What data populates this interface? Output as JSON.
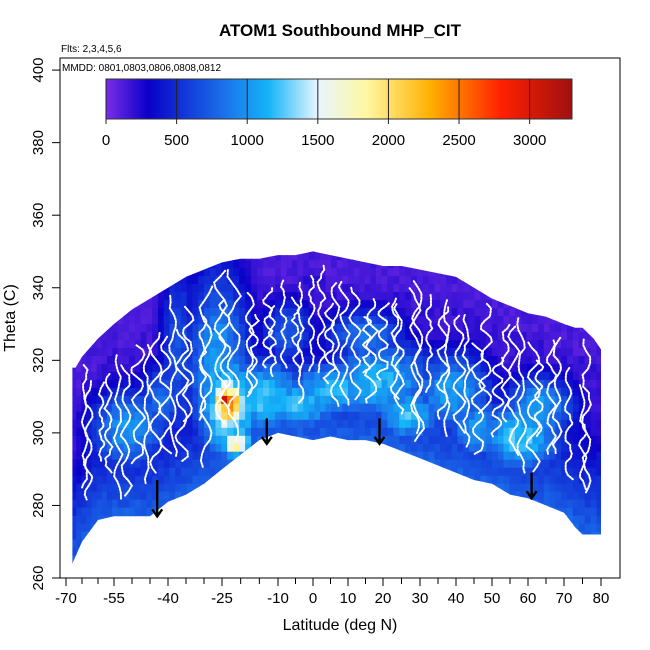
{
  "chart_data": {
    "type": "heatmap",
    "title": "ATOM1 Southbound MHP_CIT",
    "subtitle_flights": "Flts: 2,3,4,5,6",
    "subtitle_dates": "MMDD: 0801,0803,0806,0808,0812",
    "xlabel": "Latitude (deg N)",
    "ylabel": "Theta (C)",
    "xlim": [
      -72,
      83
    ],
    "ylim": [
      260,
      403
    ],
    "x_major_ticks": [
      -70,
      -55,
      -40,
      -25,
      -10,
      0,
      10,
      20,
      30,
      40,
      50,
      60,
      70,
      80
    ],
    "x_tick_labels": [
      "-70",
      "-55",
      "-40",
      "-25",
      "-10",
      "0",
      "10",
      "20",
      "30",
      "40",
      "50",
      "60",
      "70",
      "80"
    ],
    "x_minor_ticks": [
      -65,
      -60,
      -50,
      -45,
      -35,
      -30,
      -20,
      -15,
      -5,
      5,
      15,
      25,
      35,
      45,
      55,
      65,
      75
    ],
    "y_ticks": [
      260,
      280,
      300,
      320,
      340,
      360,
      380,
      400
    ],
    "y_tick_labels": [
      "260",
      "280",
      "300",
      "320",
      "340",
      "360",
      "380",
      "400"
    ],
    "colorbar": {
      "min": 0,
      "max": 3300,
      "ticks": [
        0,
        500,
        1000,
        1500,
        2000,
        2500,
        3000
      ],
      "tick_labels": [
        "0",
        "500",
        "1000",
        "1500",
        "2000",
        "2500",
        "3000"
      ],
      "colors": [
        "#7a2ee8",
        "#0a00c8",
        "#1a6ae8",
        "#14b4f8",
        "#e8f6ff",
        "#fff7a0",
        "#ffb000",
        "#ff2000",
        "#a01010"
      ],
      "stops": [
        0,
        300,
        800,
        1150,
        1500,
        1850,
        2300,
        2800,
        3300
      ]
    },
    "envelope": {
      "lat": [
        -68,
        -67,
        -65,
        -60,
        -55,
        -50,
        -45,
        -40,
        -35,
        -30,
        -25,
        -20,
        -15,
        -10,
        -5,
        0,
        5,
        10,
        15,
        20,
        25,
        30,
        35,
        40,
        45,
        50,
        55,
        60,
        65,
        70,
        73,
        75,
        78,
        80
      ],
      "top": [
        318,
        318,
        321,
        326,
        330,
        334,
        337,
        340,
        343,
        345,
        347,
        348,
        348,
        349,
        349,
        350,
        349,
        348,
        347,
        346,
        346,
        345,
        344,
        343,
        340,
        337,
        335,
        333,
        332,
        330,
        329,
        329,
        326,
        323
      ],
      "bottom": [
        264,
        266,
        270,
        276,
        277,
        277,
        277,
        281,
        283,
        286,
        290,
        294,
        298,
        300,
        299,
        298,
        299,
        298,
        298,
        297,
        295,
        293,
        291,
        289,
        287,
        286,
        283,
        282,
        280,
        278,
        274,
        272,
        272,
        272
      ]
    },
    "blobs": [
      {
        "lat": -52,
        "theta": 300,
        "value": 1000,
        "w": 9,
        "h": 9
      },
      {
        "lat": -43,
        "theta": 308,
        "value": 820,
        "w": 5,
        "h": 8
      },
      {
        "lat": -38,
        "theta": 320,
        "value": 700,
        "w": 4,
        "h": 22
      },
      {
        "lat": -27,
        "theta": 316,
        "value": 1050,
        "w": 7,
        "h": 22
      },
      {
        "lat": -24,
        "theta": 306,
        "value": 1450,
        "w": 7,
        "h": 12
      },
      {
        "lat": -24,
        "theta": 307,
        "value": 2300,
        "w": 3.8,
        "h": 6
      },
      {
        "lat": -25,
        "theta": 308,
        "value": 2900,
        "w": 2.2,
        "h": 3
      },
      {
        "lat": -22,
        "theta": 296,
        "value": 1800,
        "w": 3.5,
        "h": 3
      },
      {
        "lat": -15,
        "theta": 309,
        "value": 1250,
        "w": 10,
        "h": 8
      },
      {
        "lat": -5,
        "theta": 307,
        "value": 1200,
        "w": 10,
        "h": 6
      },
      {
        "lat": 5,
        "theta": 311,
        "value": 1150,
        "w": 12,
        "h": 6
      },
      {
        "lat": 18,
        "theta": 313,
        "value": 1150,
        "w": 12,
        "h": 9
      },
      {
        "lat": 26,
        "theta": 304,
        "value": 1200,
        "w": 7,
        "h": 6
      },
      {
        "lat": 38,
        "theta": 310,
        "value": 1050,
        "w": 9,
        "h": 9
      },
      {
        "lat": 45,
        "theta": 300,
        "value": 1050,
        "w": 7,
        "h": 7
      },
      {
        "lat": 57,
        "theta": 298,
        "value": 1250,
        "w": 9,
        "h": 8
      },
      {
        "lat": 62,
        "theta": 306,
        "value": 1050,
        "w": 8,
        "h": 7
      },
      {
        "lat": 14,
        "theta": 326,
        "value": 850,
        "w": 9,
        "h": 6
      },
      {
        "lat": -8,
        "theta": 327,
        "value": 750,
        "w": 6,
        "h": 7
      }
    ],
    "arrows": [
      {
        "lat": -43,
        "theta_top": 287,
        "theta_tip": 277
      },
      {
        "lat": -13,
        "theta_top": 304,
        "theta_tip": 297
      },
      {
        "lat": 19,
        "theta_top": 304,
        "theta_tip": 297
      },
      {
        "lat": 61,
        "theta_top": 289,
        "theta_tip": 282
      }
    ],
    "flight_profiles": {
      "description": "dense vertical profile tracks from aircraft ascents/descents",
      "lat_range": [
        -66,
        78
      ],
      "count": 56
    }
  }
}
